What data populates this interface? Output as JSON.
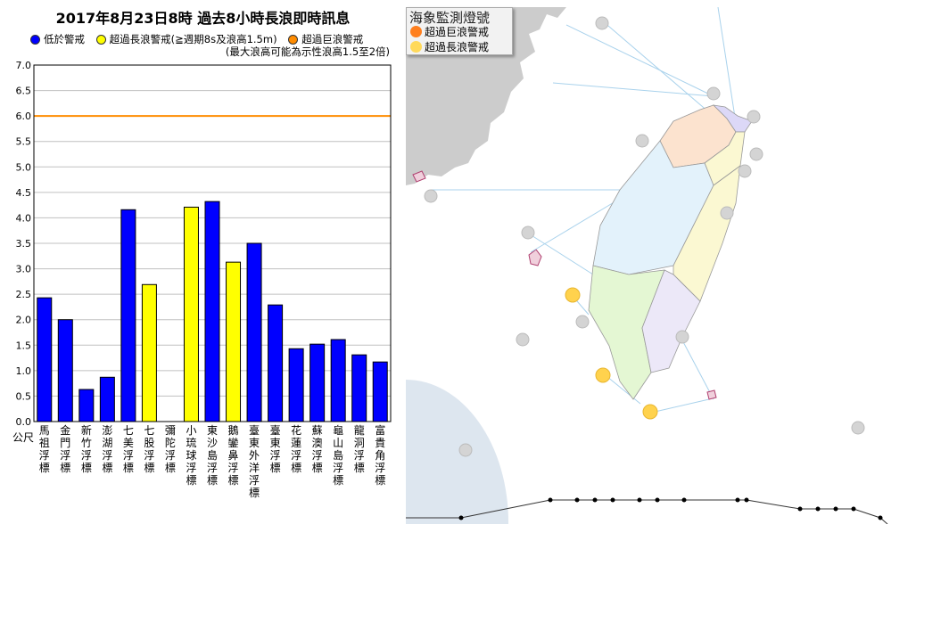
{
  "title": "2017年8月23日8時 過去8小時長浪即時訊息",
  "legend": {
    "items": [
      {
        "label": "低於警戒",
        "color": "#0000ff"
      },
      {
        "label": "超過長浪警戒(≧週期8s及浪高1.5m)",
        "color": "#ffff00"
      },
      {
        "label": "超過巨浪警戒",
        "color": "#ff8c00"
      }
    ],
    "note": "(最大浪高可能為示性浪高1.5至2倍)"
  },
  "chart_data": {
    "type": "bar",
    "title": "2017年8月23日8時 過去8小時長浪即時訊息",
    "ylabel": "公尺",
    "ylim": [
      0,
      7
    ],
    "yticks": [
      "0.0",
      "0.5",
      "1.0",
      "1.5",
      "2.0",
      "2.5",
      "3.0",
      "3.5",
      "4.0",
      "4.5",
      "5.0",
      "5.5",
      "6.0",
      "6.5",
      "7.0"
    ],
    "threshold": {
      "value": 6.0,
      "color": "#ff8c00",
      "label": "超過巨浪警戒"
    },
    "grid": true,
    "categories": [
      "馬祖浮標",
      "金門浮標",
      "新竹浮標",
      "澎湖浮標",
      "七美浮標",
      "七股浮標",
      "彌陀浮標",
      "小琉球浮標",
      "東沙島浮標",
      "鵝鑾鼻浮標",
      "臺東外洋浮標",
      "臺東浮標",
      "花蓮浮標",
      "蘇澳浮標",
      "龜山島浮標",
      "龍洞浮標",
      "富貴角浮標"
    ],
    "values": [
      2.43,
      2.0,
      0.63,
      0.87,
      4.16,
      2.69,
      null,
      4.21,
      4.32,
      3.13,
      3.5,
      2.29,
      1.43,
      1.52,
      1.61,
      1.31,
      1.17
    ],
    "status": [
      "low",
      "low",
      "low",
      "low",
      "low",
      "long",
      "none",
      "long",
      "low",
      "long",
      "low",
      "low",
      "low",
      "low",
      "low",
      "low",
      "low"
    ],
    "status_colors": {
      "low": "#0000ff",
      "long": "#ffff00",
      "huge": "#ff8c00"
    }
  },
  "map": {
    "legend_title": "海象監測燈號",
    "legend_items": [
      {
        "label": "超過巨浪警戒",
        "color": "#ff7f1e"
      },
      {
        "label": "超過長浪警戒",
        "color": "#ffd95a"
      }
    ],
    "colors": {
      "sea": "#ffffff",
      "land_region_north": "#fce3cf",
      "land_region_taipei": "#dcd8f7",
      "land_region_central": "#e3f2fb",
      "land_region_east": "#fbf8d2",
      "land_region_south": "#e4f7d3",
      "land_region_southeast": "#ece8f8",
      "mainland": "#cccccc",
      "buoy_gray": "#d4d4d4",
      "buoy_alert": "#ffd24d"
    }
  }
}
